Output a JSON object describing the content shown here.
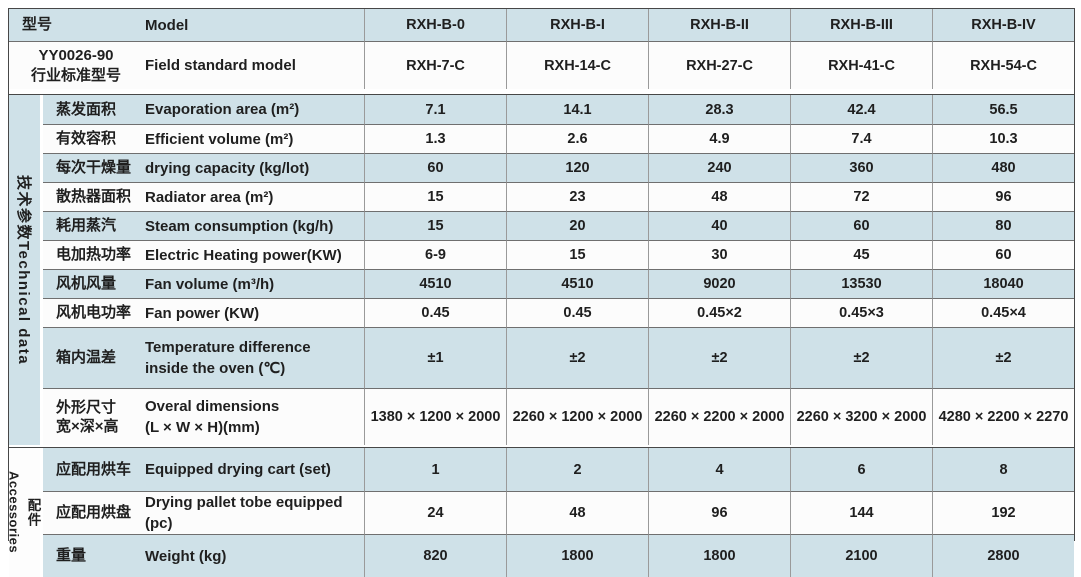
{
  "table": {
    "header": {
      "model_zh": "型号",
      "model_en": "Model",
      "models": [
        "RXH-B-0",
        "RXH-B-I",
        "RXH-B-II",
        "RXH-B-III",
        "RXH-B-IV"
      ],
      "standard_zh": "YY0026-90\n行业标准型号",
      "standard_en": "Field standard model",
      "standard_models": [
        "RXH-7-C",
        "RXH-14-C",
        "RXH-27-C",
        "RXH-41-C",
        "RXH-54-C"
      ]
    },
    "sections": [
      {
        "id": "technical-data",
        "group_label": "技术参数Technical data",
        "rows": [
          {
            "zh": "蒸发面积",
            "en": "Evaporation area (m²)",
            "values": [
              "7.1",
              "14.1",
              "28.3",
              "42.4",
              "56.5"
            ]
          },
          {
            "zh": "有效容积",
            "en": "Efficient volume (m²)",
            "values": [
              "1.3",
              "2.6",
              "4.9",
              "7.4",
              "10.3"
            ]
          },
          {
            "zh": "每次干燥量",
            "en": "drying capacity (kg/lot)",
            "values": [
              "60",
              "120",
              "240",
              "360",
              "480"
            ]
          },
          {
            "zh": "散热器面积",
            "en": "Radiator area (m²)",
            "values": [
              "15",
              "23",
              "48",
              "72",
              "96"
            ]
          },
          {
            "zh": "耗用蒸汽",
            "en": "Steam consumption (kg/h)",
            "values": [
              "15",
              "20",
              "40",
              "60",
              "80"
            ]
          },
          {
            "zh": "电加热功率",
            "en": "Electric Heating power(KW)",
            "values": [
              "6-9",
              "15",
              "30",
              "45",
              "60"
            ]
          },
          {
            "zh": "风机风量",
            "en": "Fan volume (m³/h)",
            "values": [
              "4510",
              "4510",
              "9020",
              "13530",
              "18040"
            ]
          },
          {
            "zh": "风机电功率",
            "en": "Fan power (KW)",
            "values": [
              "0.45",
              "0.45",
              "0.45×2",
              "0.45×3",
              "0.45×4"
            ]
          },
          {
            "zh": "箱内温差",
            "en": "Temperature difference\ninside the oven (℃)",
            "values": [
              "±1",
              "±2",
              "±2",
              "±2",
              "±2"
            ]
          },
          {
            "zh": "外形尺寸\n宽×深×高",
            "en": "Overal dimensions\n(L × W × H)(mm)",
            "values": [
              "1380 × 1200 × 2000",
              "2260 × 1200 × 2000",
              "2260 × 2200 × 2000",
              "2260 × 3200 × 2000",
              "4280 × 2200 × 2270"
            ]
          }
        ]
      },
      {
        "id": "accessories",
        "group_zh": "配件",
        "group_en": "Accessories",
        "rows": [
          {
            "zh": "应配用烘车",
            "en": "Equipped drying cart (set)",
            "values": [
              "1",
              "2",
              "4",
              "6",
              "8"
            ]
          },
          {
            "zh": "应配用烘盘",
            "en": "Drying pallet tobe equipped (pc)",
            "values": [
              "24",
              "48",
              "96",
              "144",
              "192"
            ]
          },
          {
            "zh": "重量",
            "en": "Weight (kg)",
            "values": [
              "820",
              "1800",
              "1800",
              "2100",
              "2800"
            ]
          }
        ]
      }
    ],
    "colors": {
      "row_blue": "#cfe1e8",
      "row_white": "#fcfcfc",
      "frame_line": "#474747",
      "row_line": "#6f6f6f",
      "column_line": "#9a9a9a",
      "text": "#1f1f1f"
    }
  }
}
